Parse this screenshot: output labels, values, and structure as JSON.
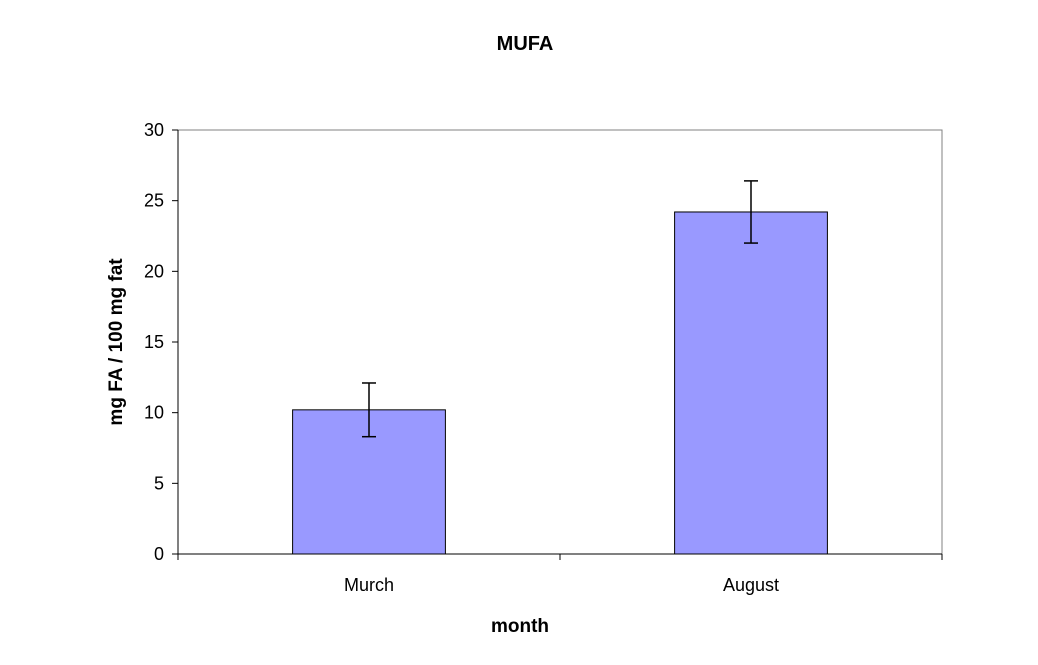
{
  "chart_data": {
    "type": "bar",
    "title": "MUFA",
    "xlabel": "month",
    "ylabel": "mg FA / 100 mg fat",
    "categories": [
      "Murch",
      "August"
    ],
    "values": [
      10.2,
      24.2
    ],
    "error": [
      1.9,
      2.2
    ],
    "ylim": [
      0,
      30
    ],
    "yticks": [
      0,
      5,
      10,
      15,
      20,
      25,
      30
    ],
    "grid": false,
    "legend": "none",
    "bar_color": "#9999ff",
    "bar_edge_color": "#000000"
  }
}
